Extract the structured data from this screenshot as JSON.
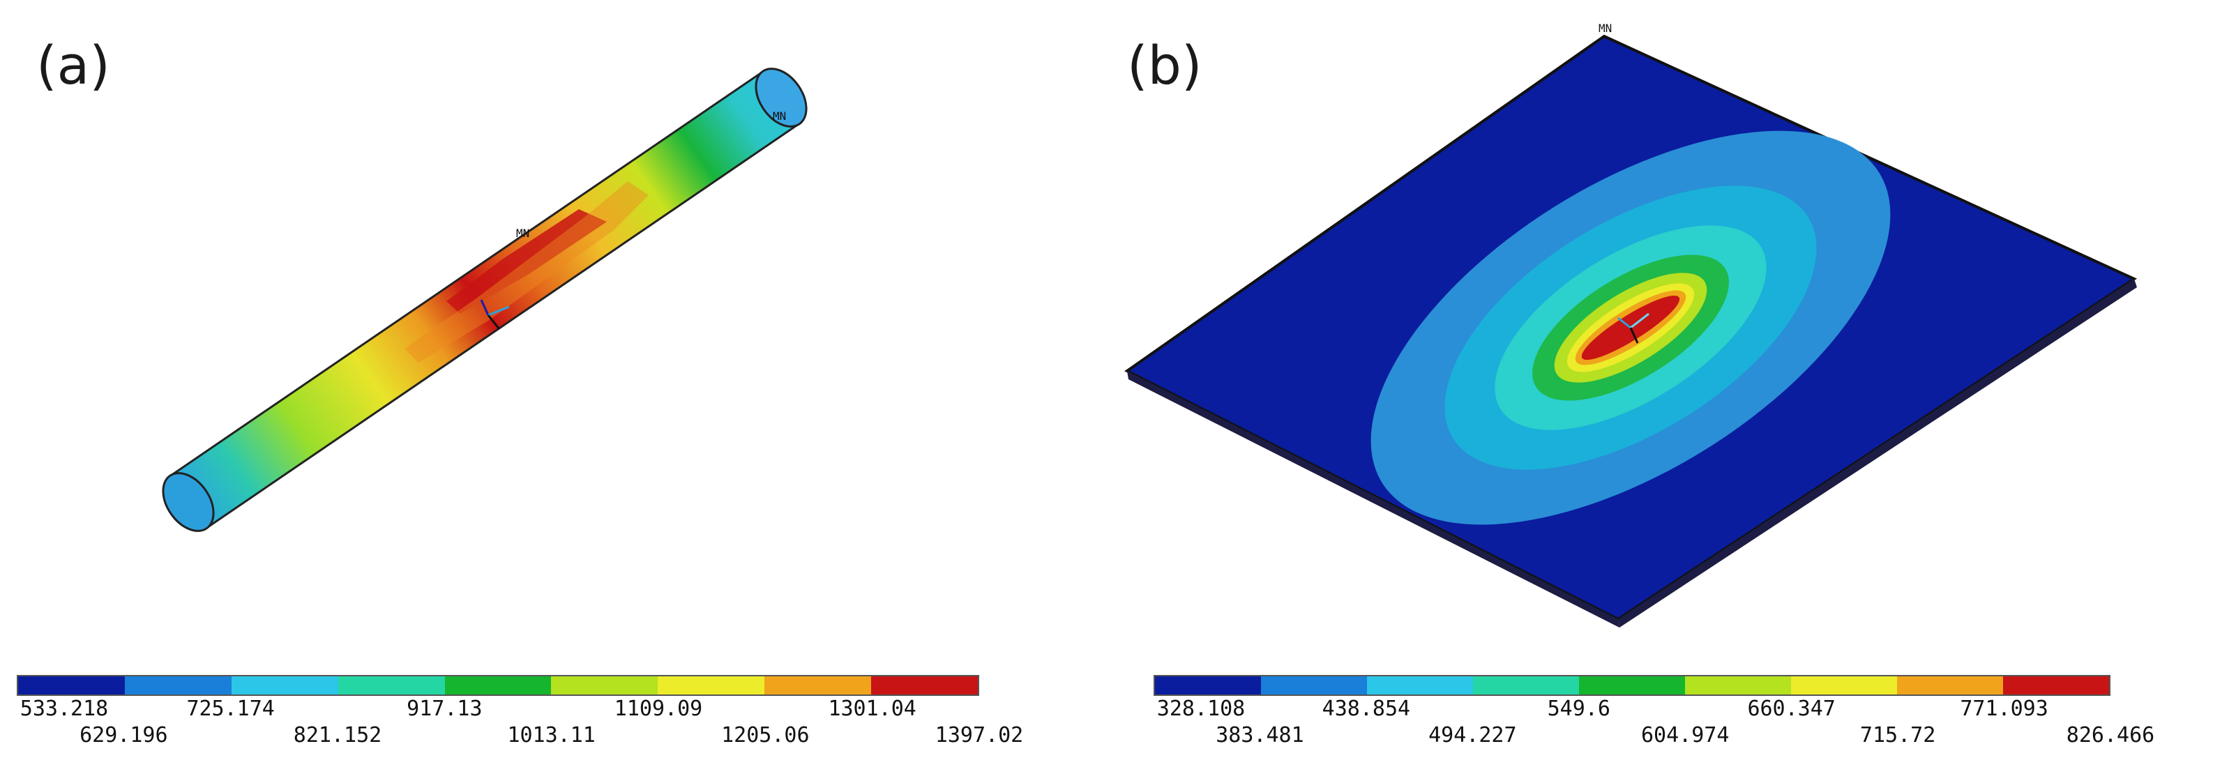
{
  "panels": [
    {
      "id": "a",
      "label": "(a)",
      "node_label": "MN",
      "colorbar": {
        "values": [
          "533.218",
          "629.196",
          "725.174",
          "821.152",
          "917.13",
          "1013.11",
          "1109.09",
          "1205.06",
          "1301.04",
          "1397.02"
        ],
        "colors": [
          "#0a1d9e",
          "#1a7fd8",
          "#2cc6e8",
          "#23d6a4",
          "#16b52e",
          "#b4e21e",
          "#ecec2a",
          "#f0a41c",
          "#c81414"
        ]
      }
    },
    {
      "id": "b",
      "label": "(b)",
      "node_label": "MN",
      "colorbar": {
        "values": [
          "328.108",
          "383.481",
          "438.854",
          "494.227",
          "549.6",
          "604.974",
          "660.347",
          "715.72",
          "771.093",
          "826.466"
        ],
        "colors": [
          "#0a1d9e",
          "#1a7fd8",
          "#2cc6e8",
          "#23d6a4",
          "#16b52e",
          "#b4e21e",
          "#ecec2a",
          "#f0a41c",
          "#c81414"
        ]
      }
    }
  ]
}
